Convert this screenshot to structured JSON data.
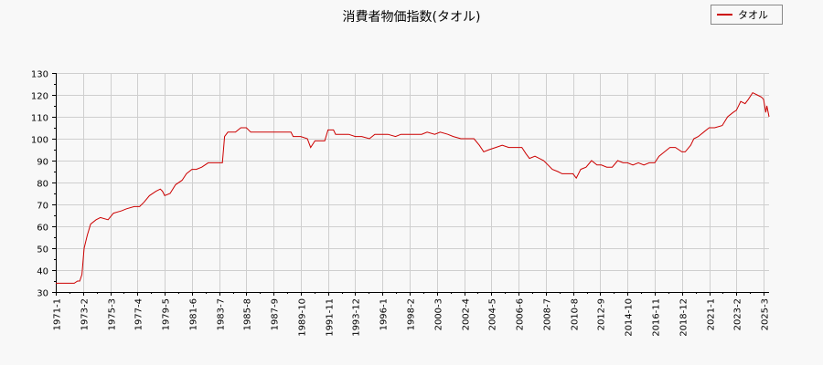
{
  "chart_data": {
    "type": "line",
    "title": "消費者物価指数(タオル)",
    "xlabel": "",
    "ylabel": "",
    "ylim": [
      30,
      130
    ],
    "yticks": [
      30,
      40,
      50,
      60,
      70,
      80,
      90,
      100,
      110,
      120,
      130
    ],
    "xticks": [
      "1971-1",
      "1973-2",
      "1975-3",
      "1977-4",
      "1979-5",
      "1981-6",
      "1983-7",
      "1985-8",
      "1987-9",
      "1989-10",
      "1991-11",
      "1993-12",
      "1996-1",
      "1998-2",
      "2000-3",
      "2002-4",
      "2004-5",
      "2006-6",
      "2008-7",
      "2010-8",
      "2012-9",
      "2014-10",
      "2016-11",
      "2018-12",
      "2021-1",
      "2023-2",
      "2025-3"
    ],
    "xlim": [
      "1971-1",
      "2025-8"
    ],
    "grid": true,
    "legend": "top-right",
    "series": [
      {
        "name": "タオル",
        "color": "#cc0000",
        "points": [
          [
            "1971-1",
            34
          ],
          [
            "1972-6",
            34
          ],
          [
            "1972-9",
            35
          ],
          [
            "1972-11",
            35
          ],
          [
            "1973-1",
            38
          ],
          [
            "1973-3",
            50
          ],
          [
            "1973-6",
            56
          ],
          [
            "1973-9",
            61
          ],
          [
            "1974-2",
            63
          ],
          [
            "1974-6",
            64
          ],
          [
            "1975-1",
            63
          ],
          [
            "1975-6",
            66
          ],
          [
            "1976-1",
            67
          ],
          [
            "1976-6",
            68
          ],
          [
            "1977-1",
            69
          ],
          [
            "1977-6",
            69
          ],
          [
            "1977-10",
            71
          ],
          [
            "1978-3",
            74
          ],
          [
            "1978-9",
            76
          ],
          [
            "1979-1",
            77
          ],
          [
            "1979-3",
            76
          ],
          [
            "1979-5",
            74
          ],
          [
            "1979-10",
            75
          ],
          [
            "1980-3",
            79
          ],
          [
            "1980-9",
            81
          ],
          [
            "1981-1",
            84
          ],
          [
            "1981-6",
            86
          ],
          [
            "1981-10",
            86
          ],
          [
            "1982-3",
            87
          ],
          [
            "1982-9",
            89
          ],
          [
            "1983-1",
            89
          ],
          [
            "1983-6",
            89
          ],
          [
            "1983-10",
            89
          ],
          [
            "1983-12",
            101
          ],
          [
            "1984-3",
            103
          ],
          [
            "1984-10",
            103
          ],
          [
            "1985-3",
            105
          ],
          [
            "1985-8",
            105
          ],
          [
            "1985-12",
            103
          ],
          [
            "1986-6",
            103
          ],
          [
            "1987-1",
            103
          ],
          [
            "1987-6",
            103
          ],
          [
            "1988-1",
            103
          ],
          [
            "1988-6",
            103
          ],
          [
            "1989-1",
            103
          ],
          [
            "1989-3",
            101
          ],
          [
            "1989-10",
            101
          ],
          [
            "1990-4",
            100
          ],
          [
            "1990-7",
            96
          ],
          [
            "1990-11",
            99
          ],
          [
            "1991-3",
            99
          ],
          [
            "1991-8",
            99
          ],
          [
            "1991-11",
            104
          ],
          [
            "1992-4",
            104
          ],
          [
            "1992-6",
            102
          ],
          [
            "1993-1",
            102
          ],
          [
            "1993-6",
            102
          ],
          [
            "1993-12",
            101
          ],
          [
            "1994-6",
            101
          ],
          [
            "1995-1",
            100
          ],
          [
            "1995-6",
            102
          ],
          [
            "1996-1",
            102
          ],
          [
            "1996-6",
            102
          ],
          [
            "1997-1",
            101
          ],
          [
            "1997-6",
            102
          ],
          [
            "1998-1",
            102
          ],
          [
            "1998-6",
            102
          ],
          [
            "1999-1",
            102
          ],
          [
            "1999-6",
            103
          ],
          [
            "2000-1",
            102
          ],
          [
            "2000-6",
            103
          ],
          [
            "2001-1",
            102
          ],
          [
            "2001-6",
            101
          ],
          [
            "2002-1",
            100
          ],
          [
            "2002-6",
            100
          ],
          [
            "2003-1",
            100
          ],
          [
            "2003-6",
            97
          ],
          [
            "2003-10",
            94
          ],
          [
            "2004-3",
            95
          ],
          [
            "2004-9",
            96
          ],
          [
            "2005-3",
            97
          ],
          [
            "2005-9",
            96
          ],
          [
            "2006-3",
            96
          ],
          [
            "2006-6",
            96
          ],
          [
            "2006-9",
            96
          ],
          [
            "2007-1",
            93
          ],
          [
            "2007-4",
            91
          ],
          [
            "2007-9",
            92
          ],
          [
            "2008-1",
            91
          ],
          [
            "2008-5",
            90
          ],
          [
            "2008-9",
            88
          ],
          [
            "2009-1",
            86
          ],
          [
            "2009-6",
            85
          ],
          [
            "2009-10",
            84
          ],
          [
            "2010-3",
            84
          ],
          [
            "2010-8",
            84
          ],
          [
            "2010-11",
            82
          ],
          [
            "2011-3",
            86
          ],
          [
            "2011-8",
            87
          ],
          [
            "2012-1",
            90
          ],
          [
            "2012-6",
            88
          ],
          [
            "2012-10",
            88
          ],
          [
            "2013-3",
            87
          ],
          [
            "2013-8",
            87
          ],
          [
            "2014-1",
            90
          ],
          [
            "2014-6",
            89
          ],
          [
            "2014-10",
            89
          ],
          [
            "2015-3",
            88
          ],
          [
            "2015-8",
            89
          ],
          [
            "2016-1",
            88
          ],
          [
            "2016-6",
            89
          ],
          [
            "2016-11",
            89
          ],
          [
            "2017-3",
            92
          ],
          [
            "2017-8",
            94
          ],
          [
            "2018-1",
            96
          ],
          [
            "2018-6",
            96
          ],
          [
            "2018-12",
            94
          ],
          [
            "2019-3",
            94
          ],
          [
            "2019-8",
            97
          ],
          [
            "2019-11",
            100
          ],
          [
            "2020-3",
            101
          ],
          [
            "2020-8",
            103
          ],
          [
            "2021-1",
            105
          ],
          [
            "2021-6",
            105
          ],
          [
            "2022-1",
            106
          ],
          [
            "2022-6",
            110
          ],
          [
            "2022-11",
            112
          ],
          [
            "2023-2",
            113
          ],
          [
            "2023-6",
            117
          ],
          [
            "2023-10",
            116
          ],
          [
            "2024-1",
            118
          ],
          [
            "2024-5",
            121
          ],
          [
            "2024-9",
            120
          ],
          [
            "2025-1",
            119
          ],
          [
            "2025-3",
            118
          ],
          [
            "2025-5",
            112
          ],
          [
            "2025-6",
            115
          ],
          [
            "2025-8",
            110
          ]
        ]
      }
    ]
  }
}
